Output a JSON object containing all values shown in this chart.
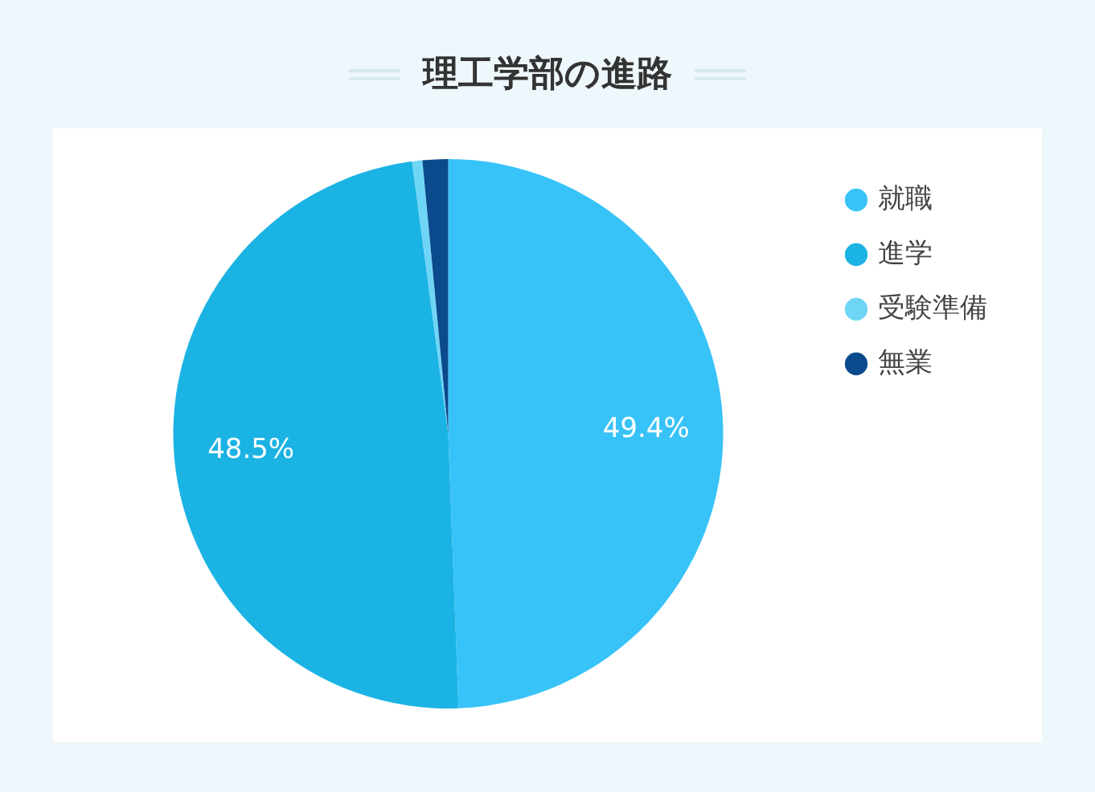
{
  "chart_data": {
    "type": "pie",
    "title": "理工学部の進路",
    "categories": [
      "就職",
      "進学",
      "受験準備",
      "無業"
    ],
    "values": [
      49.4,
      48.5,
      0.6,
      1.5
    ],
    "colors": [
      "#38c3f8",
      "#1bb3e3",
      "#6fd5f7",
      "#0b4a8c"
    ],
    "value_labels": [
      "49.4%",
      "48.5%",
      null,
      null
    ],
    "legend": "top right"
  }
}
